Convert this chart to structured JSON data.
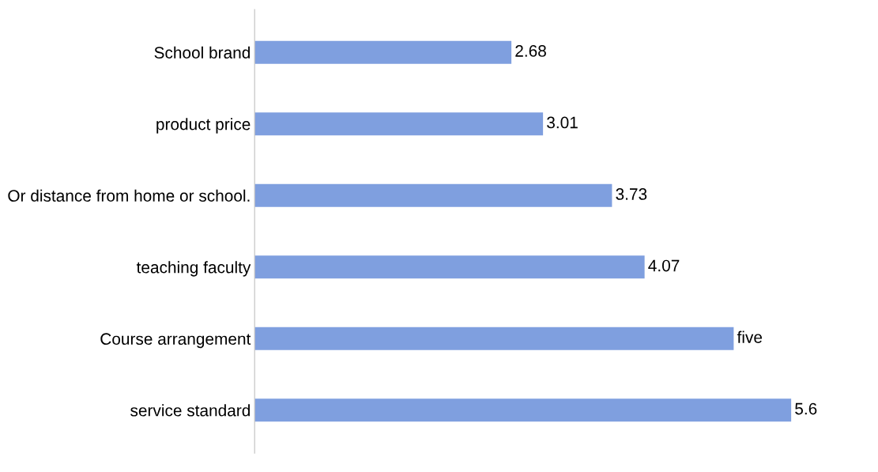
{
  "chart_data": {
    "type": "bar",
    "orientation": "horizontal",
    "categories": [
      "School brand",
      "product price",
      "Or distance from home or school.",
      "teaching faculty",
      "Course arrangement",
      "service standard"
    ],
    "values": [
      2.68,
      3.01,
      3.73,
      4.07,
      5,
      5.6
    ],
    "value_labels": [
      "2.68",
      "3.01",
      "3.73",
      "4.07",
      "five",
      "5.6"
    ],
    "color": "#7f9fdf",
    "grid": false,
    "legend": false
  }
}
